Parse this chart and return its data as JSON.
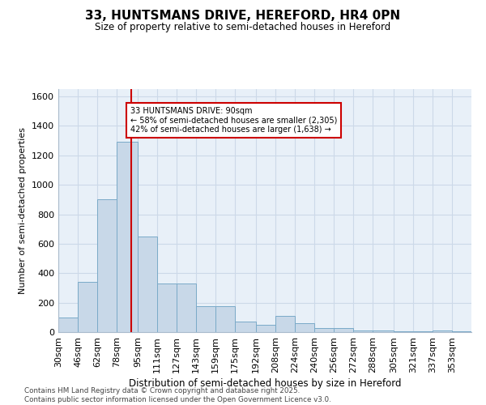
{
  "title_line1": "33, HUNTSMANS DRIVE, HEREFORD, HR4 0PN",
  "title_line2": "Size of property relative to semi-detached houses in Hereford",
  "xlabel": "Distribution of semi-detached houses by size in Hereford",
  "ylabel": "Number of semi-detached properties",
  "property_label": "33 HUNTSMANS DRIVE: 90sqm",
  "pct_smaller": 58,
  "pct_larger": 42,
  "count_smaller": 2305,
  "count_larger": 1638,
  "bin_labels": [
    "30sqm",
    "46sqm",
    "62sqm",
    "78sqm",
    "95sqm",
    "111sqm",
    "127sqm",
    "143sqm",
    "159sqm",
    "175sqm",
    "192sqm",
    "208sqm",
    "224sqm",
    "240sqm",
    "256sqm",
    "272sqm",
    "288sqm",
    "305sqm",
    "321sqm",
    "337sqm",
    "353sqm"
  ],
  "bin_edges": [
    30,
    46,
    62,
    78,
    95,
    111,
    127,
    143,
    159,
    175,
    192,
    208,
    224,
    240,
    256,
    272,
    288,
    305,
    321,
    337,
    353,
    369
  ],
  "bar_heights": [
    100,
    340,
    900,
    1290,
    650,
    330,
    330,
    175,
    175,
    70,
    50,
    110,
    60,
    30,
    30,
    10,
    10,
    5,
    5,
    10,
    5
  ],
  "bar_color": "#c8d8e8",
  "bar_edge_color": "#7aaac8",
  "vline_color": "#cc0000",
  "vline_x": 90,
  "box_color": "#cc0000",
  "ylim": [
    0,
    1650
  ],
  "yticks": [
    0,
    200,
    400,
    600,
    800,
    1000,
    1200,
    1400,
    1600
  ],
  "grid_color": "#ccd9e8",
  "bg_color": "#e8f0f8",
  "footer_line1": "Contains HM Land Registry data © Crown copyright and database right 2025.",
  "footer_line2": "Contains public sector information licensed under the Open Government Licence v3.0."
}
